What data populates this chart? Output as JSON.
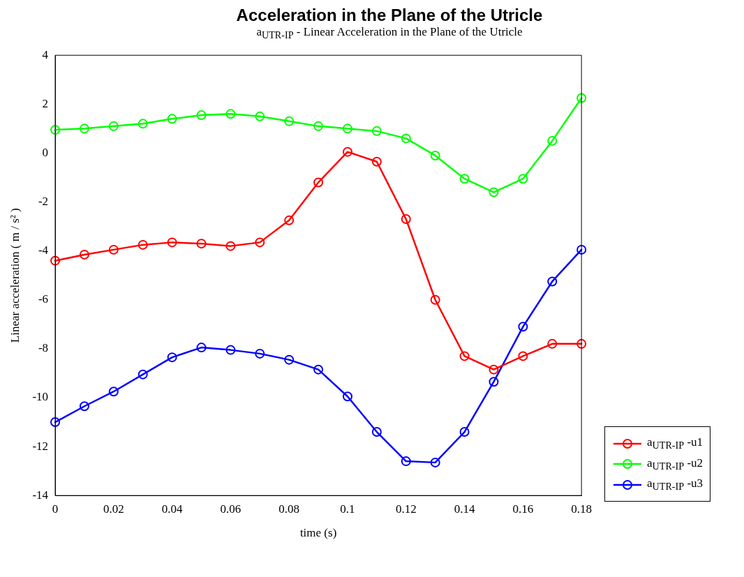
{
  "chart_data": {
    "type": "line",
    "title": "Acceleration in the Plane of the Utricle",
    "subtitle": "a$_{UTR-IP}$ - Linear Acceleration in the Plane of the Utricle",
    "xlabel": "time (s)",
    "ylabel": "Linear acceleration ( m / s² )",
    "x": [
      0,
      0.01,
      0.02,
      0.03,
      0.04,
      0.05,
      0.06,
      0.07,
      0.08,
      0.09,
      0.1,
      0.11,
      0.12,
      0.13,
      0.14,
      0.15,
      0.16,
      0.17,
      0.18
    ],
    "series": [
      {
        "name": "a$_{UTR-IP}$ -u1",
        "color": "#ff0000",
        "values": [
          -4.4,
          -4.15,
          -3.95,
          -3.75,
          -3.65,
          -3.7,
          -3.8,
          -3.65,
          -2.75,
          -1.2,
          0.05,
          -0.35,
          -2.7,
          -6.0,
          -8.3,
          -8.85,
          -8.3,
          -7.8,
          -7.8
        ]
      },
      {
        "name": "a$_{UTR-IP}$ -u2",
        "color": "#00ff00",
        "values": [
          0.95,
          1.0,
          1.1,
          1.2,
          1.4,
          1.55,
          1.6,
          1.5,
          1.3,
          1.1,
          1.0,
          0.9,
          0.6,
          -0.1,
          -1.05,
          -1.6,
          -1.05,
          0.5,
          2.25
        ]
      },
      {
        "name": "a$_{UTR-IP}$ -u3",
        "color": "#0000ff",
        "values": [
          -11.0,
          -10.35,
          -9.75,
          -9.05,
          -8.35,
          -7.95,
          -8.05,
          -8.2,
          -8.45,
          -8.85,
          -9.95,
          -11.4,
          -12.6,
          -12.65,
          -11.4,
          -9.35,
          -7.1,
          -5.25,
          -3.95
        ]
      }
    ],
    "xlim": [
      0,
      0.18
    ],
    "xticks": [
      0,
      0.02,
      0.04,
      0.06,
      0.08,
      0.1,
      0.12,
      0.14,
      0.16,
      0.18
    ],
    "ylim": [
      -14,
      4
    ],
    "yticks": [
      -14,
      -12,
      -10,
      -8,
      -6,
      -4,
      -2,
      0,
      2,
      4
    ],
    "grid": false,
    "legend": "bottom right",
    "marker": "circle",
    "line_style": "solid"
  }
}
